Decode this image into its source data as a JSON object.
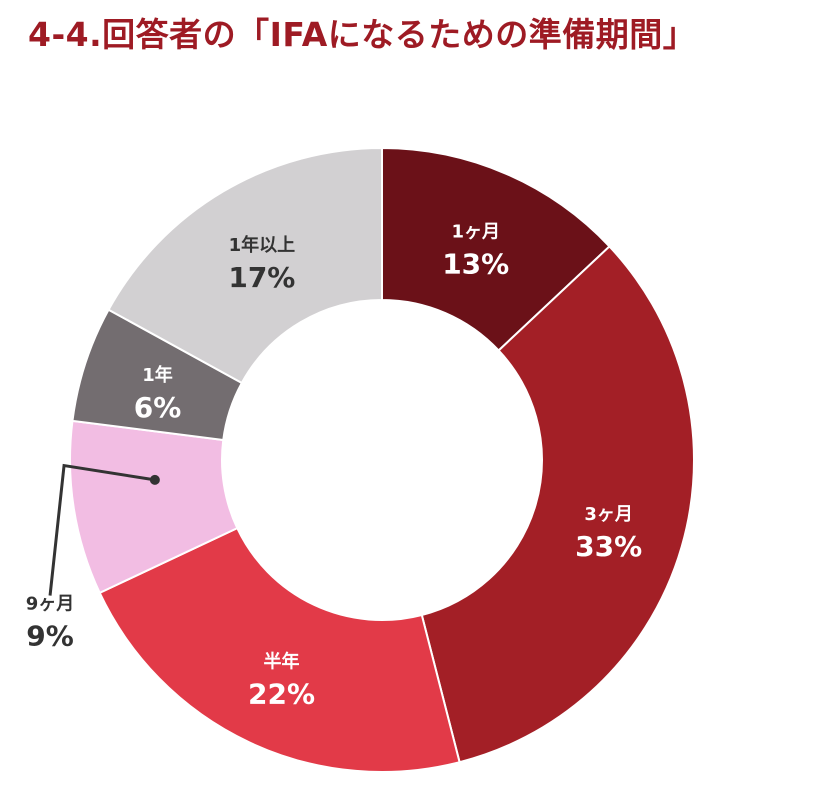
{
  "title": "4-4.回答者の「IFAになるための準備期間」",
  "chart_data": {
    "type": "pie",
    "variant": "donut",
    "title": "4-4.回答者の「IFAになるための準備期間」",
    "categories": [
      "1ヶ月",
      "3ヶ月",
      "半年",
      "9ヶ月",
      "1年",
      "1年以上"
    ],
    "values": [
      13,
      33,
      22,
      9,
      6,
      17
    ],
    "value_labels": [
      "13%",
      "33%",
      "22%",
      "9%",
      "6%",
      "17%"
    ],
    "colors": [
      "#6b1118",
      "#a31f26",
      "#e23a48",
      "#f2bde3",
      "#736d70",
      "#d2d0d2"
    ],
    "label_colors": [
      "#ffffff",
      "#ffffff",
      "#ffffff",
      "#333333",
      "#ffffff",
      "#333333"
    ],
    "start_angle": "12 o'clock",
    "direction": "clockwise",
    "external_label_index": 3
  }
}
